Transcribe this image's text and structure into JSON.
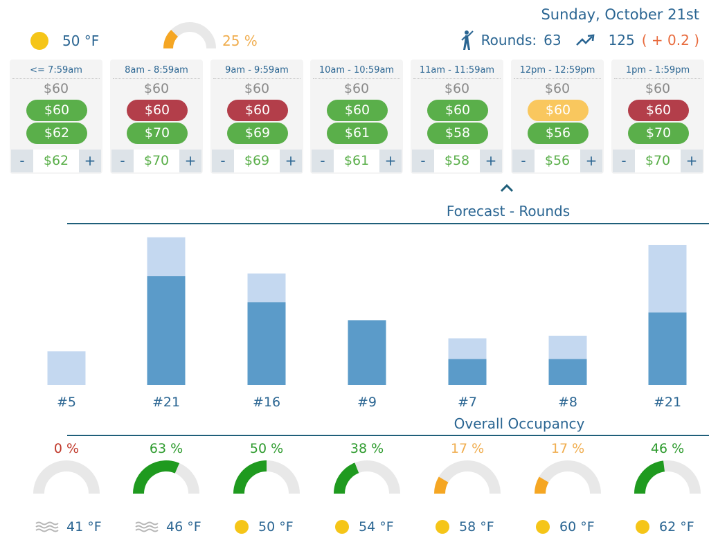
{
  "header": {
    "date": "Sunday, October 21st",
    "temp": "50 °F",
    "weather_icon": "sun-icon",
    "occupancy": "25 %",
    "occupancy_value": 0.25,
    "rounds_label": "Rounds:",
    "rounds_value": "63",
    "rounds_forecast": "125",
    "rounds_delta": "( + 0.2 )"
  },
  "colors": {
    "primary": "#2a6592",
    "green": "#5aaf4a",
    "red": "#b33e4a",
    "yellow": "#f9c75e",
    "bar_dark": "#5b9bc9",
    "bar_light": "#c4d8f0",
    "gauge_green": "#1f9a1f",
    "gauge_orange": "#f5a623",
    "gauge_track": "#e8e8e8"
  },
  "slots": [
    {
      "label": "<= 7:59am",
      "base": "$60",
      "p1": "$60",
      "p1_color": "green",
      "p2": "$62",
      "p2_color": "green",
      "value": "$62"
    },
    {
      "label": "8am - 8:59am",
      "base": "$60",
      "p1": "$60",
      "p1_color": "red",
      "p2": "$70",
      "p2_color": "green",
      "value": "$70"
    },
    {
      "label": "9am - 9:59am",
      "base": "$60",
      "p1": "$60",
      "p1_color": "red",
      "p2": "$69",
      "p2_color": "green",
      "value": "$69"
    },
    {
      "label": "10am - 10:59am",
      "base": "$60",
      "p1": "$60",
      "p1_color": "green",
      "p2": "$61",
      "p2_color": "green",
      "value": "$61"
    },
    {
      "label": "11am - 11:59am",
      "base": "$60",
      "p1": "$60",
      "p1_color": "green",
      "p2": "$58",
      "p2_color": "green",
      "value": "$58"
    },
    {
      "label": "12pm - 12:59pm",
      "base": "$60",
      "p1": "$60",
      "p1_color": "yellow",
      "p2": "$56",
      "p2_color": "green",
      "value": "$56"
    },
    {
      "label": "1pm - 1:59pm",
      "base": "$60",
      "p1": "$60",
      "p1_color": "red",
      "p2": "$70",
      "p2_color": "green",
      "value": "$70"
    }
  ],
  "stepper": {
    "minus": "-",
    "plus": "+"
  },
  "forecast_title": "Forecast - Rounds",
  "occupancy_title": "Overall Occupancy",
  "chart_data": {
    "type": "bar",
    "stacked": true,
    "categories": [
      "#5",
      "#21",
      "#16",
      "#9",
      "#7",
      "#8",
      "#21"
    ],
    "series": [
      {
        "values": [
          0,
          21,
          16,
          12.5,
          5,
          5,
          14
        ]
      },
      {
        "values": [
          6.5,
          7.5,
          5.5,
          0,
          4,
          4.5,
          13
        ]
      }
    ],
    "ylim": [
      0,
      29
    ]
  },
  "occupancy": [
    {
      "pct": "0 %",
      "value": 0.0,
      "color": "red"
    },
    {
      "pct": "63 %",
      "value": 0.63,
      "color": "green"
    },
    {
      "pct": "50 %",
      "value": 0.5,
      "color": "green"
    },
    {
      "pct": "38 %",
      "value": 0.38,
      "color": "green"
    },
    {
      "pct": "17 %",
      "value": 0.17,
      "color": "orange"
    },
    {
      "pct": "17 %",
      "value": 0.17,
      "color": "orange"
    },
    {
      "pct": "46 %",
      "value": 0.46,
      "color": "green"
    }
  ],
  "weather": [
    {
      "icon": "fog-icon",
      "temp": "41 °F"
    },
    {
      "icon": "fog-icon",
      "temp": "46 °F"
    },
    {
      "icon": "sun-icon",
      "temp": "50 °F"
    },
    {
      "icon": "sun-icon",
      "temp": "54 °F"
    },
    {
      "icon": "sun-icon",
      "temp": "58 °F"
    },
    {
      "icon": "sun-icon",
      "temp": "60 °F"
    },
    {
      "icon": "sun-icon",
      "temp": "62 °F"
    }
  ]
}
